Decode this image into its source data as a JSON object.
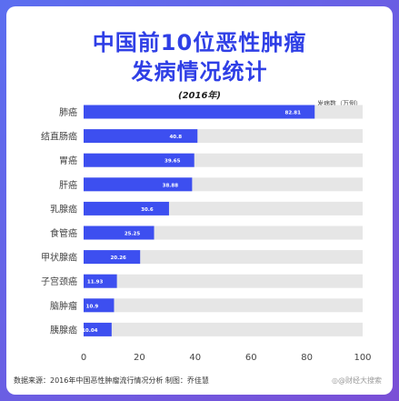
{
  "header": {
    "title_line1": "中国前10位恶性肿瘤",
    "title_line2": "发病情况统计",
    "year": "(2016年)",
    "unit": "发病数（万例）"
  },
  "footer": {
    "source": "数据来源：2016年中国恶性肿瘤流行情况分析    制图：乔佳慧",
    "watermark": "◎@财经大搜索"
  },
  "colors": {
    "bar": "#3d4ff0",
    "track": "#e6e6e6",
    "title": "#2f3fe6"
  },
  "chart_data": {
    "type": "bar",
    "orientation": "horizontal",
    "categories": [
      "肺癌",
      "结直肠癌",
      "胃癌",
      "肝癌",
      "乳腺癌",
      "食管癌",
      "甲状腺癌",
      "子宫颈癌",
      "脑肿瘤",
      "胰腺癌"
    ],
    "values": [
      82.81,
      40.8,
      39.65,
      38.88,
      30.6,
      25.25,
      20.26,
      11.93,
      10.9,
      10.04
    ],
    "value_labels": [
      "82.81",
      "40.8",
      "39.65",
      "38.88",
      "30.6",
      "25.25",
      "20.26",
      "11.93",
      "10.9",
      "10.04"
    ],
    "xlim": [
      0,
      100
    ],
    "xticks": [
      "0",
      "20",
      "40",
      "60",
      "80",
      "100"
    ],
    "grid": false
  }
}
